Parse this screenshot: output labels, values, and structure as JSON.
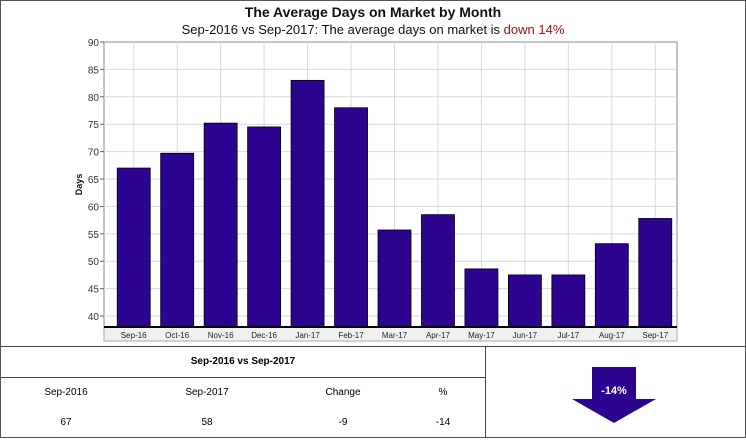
{
  "chart_data": {
    "type": "bar",
    "title": "The Average Days on Market by Month",
    "subtitle_prefix": "Sep-2016 vs Sep-2017: The average days on market is ",
    "subtitle_highlight": "down 14%",
    "ylabel": "Days",
    "xlabel": "",
    "ylim": [
      38,
      90
    ],
    "yticks": [
      40,
      45,
      50,
      55,
      60,
      65,
      70,
      75,
      80,
      85,
      90
    ],
    "categories": [
      "Sep-16",
      "Oct-16",
      "Nov-16",
      "Dec-16",
      "Jan-17",
      "Feb-17",
      "Mar-17",
      "Apr-17",
      "May-17",
      "Jun-17",
      "Jul-17",
      "Aug-17",
      "Sep-17"
    ],
    "values": [
      67,
      69.7,
      75.2,
      74.5,
      83,
      78,
      55.7,
      58.5,
      48.6,
      47.5,
      47.5,
      53.2,
      57.8
    ],
    "grid": true,
    "bar_color": "#2c0490",
    "grid_color": "#d9d9d9"
  },
  "stats": {
    "title": "Sep-2016 vs Sep-2017",
    "headers": [
      "Sep-2016",
      "Sep-2017",
      "Change",
      "%"
    ],
    "values": [
      "67",
      "58",
      "-9",
      "-14"
    ]
  },
  "arrow": {
    "label": "-14%",
    "direction": "down",
    "color": "#2c0490"
  }
}
